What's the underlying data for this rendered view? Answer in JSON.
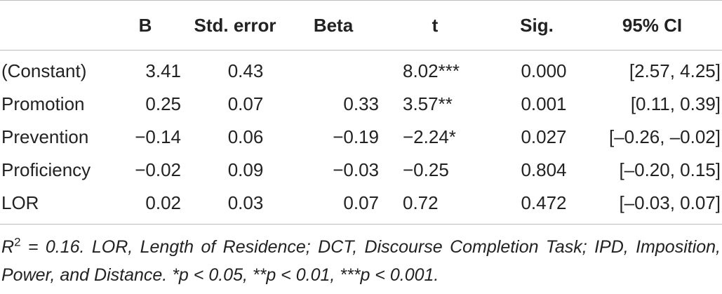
{
  "table": {
    "headers": {
      "label": "",
      "b": "B",
      "se": "Std. error",
      "beta": "Beta",
      "t": "t",
      "sig": "Sig.",
      "ci": "95% CI"
    },
    "rows": [
      {
        "label": "(Constant)",
        "b": "3.41",
        "se": "0.43",
        "beta": "",
        "t": "8.02***",
        "sig": "0.000",
        "ci": "[2.57, 4.25]"
      },
      {
        "label": "Promotion",
        "b": "0.25",
        "se": "0.07",
        "beta": "0.33",
        "t": "3.57**",
        "sig": "0.001",
        "ci": "[0.11, 0.39]"
      },
      {
        "label": "Prevention",
        "b": "−0.14",
        "se": "0.06",
        "beta": "−0.19",
        "t": "−2.24*",
        "sig": "0.027",
        "ci": "[–0.26, –0.02]"
      },
      {
        "label": "Proficiency",
        "b": "−0.02",
        "se": "0.09",
        "beta": "−0.03",
        "t": "−0.25",
        "sig": "0.804",
        "ci": "[–0.20, 0.15]"
      },
      {
        "label": "LOR",
        "b": "0.02",
        "se": "0.03",
        "beta": "0.07",
        "t": "0.72",
        "sig": "0.472",
        "ci": "[–0.03, 0.07]"
      }
    ]
  },
  "note": {
    "r_base": "R",
    "r_exp": "2",
    "text": " = 0.16. LOR, Length of Residence; DCT, Discourse Completion Task; IPD, Imposition, Power, and Distance. *p < 0.05, **p < 0.01, ***p < 0.001."
  }
}
